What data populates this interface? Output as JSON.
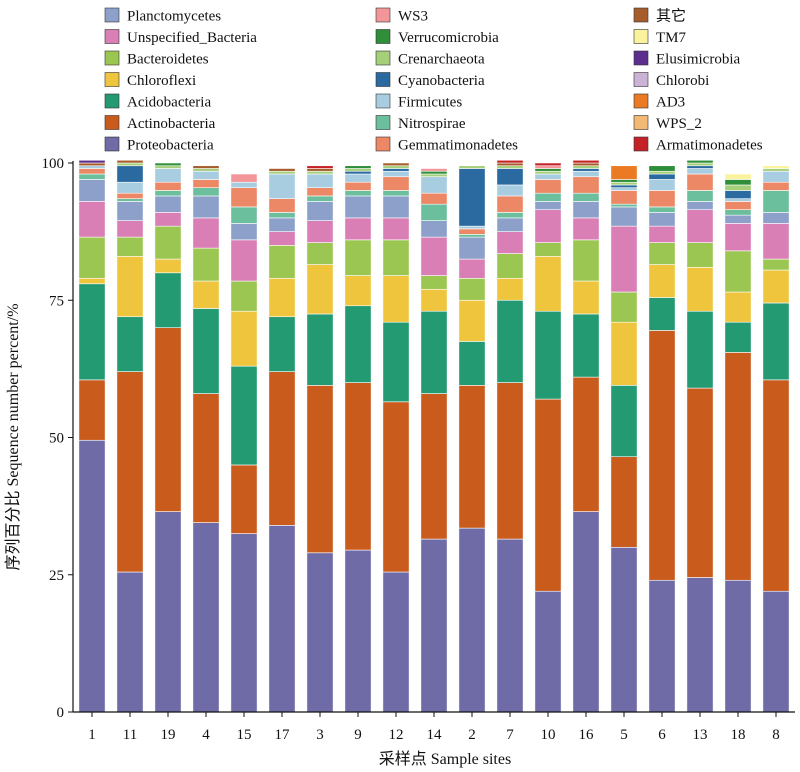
{
  "chart_data": {
    "type": "bar",
    "stacked": true,
    "xlabel": "采样点 Sample sites",
    "ylabel": "序列百分比 Sequence number percent/%",
    "ylim": [
      0,
      100
    ],
    "yticks": [
      0,
      25,
      50,
      75,
      100
    ],
    "legend_position": "top",
    "categories": [
      "1",
      "11",
      "19",
      "4",
      "15",
      "17",
      "3",
      "9",
      "12",
      "14",
      "2",
      "7",
      "10",
      "16",
      "5",
      "6",
      "13",
      "18",
      "8"
    ],
    "series": [
      {
        "name": "Proteobacteria",
        "color": "#6e6ba7",
        "values": [
          49.5,
          25.5,
          36.5,
          34.5,
          32.5,
          34,
          29,
          29.5,
          25.5,
          31.5,
          33.5,
          31.5,
          22,
          36.5,
          30,
          24,
          24.5,
          24,
          22
        ]
      },
      {
        "name": "Actinobacteria",
        "color": "#c95b1d",
        "values": [
          11,
          36.5,
          33.5,
          23.5,
          12.5,
          28,
          30.5,
          30.5,
          31,
          26.5,
          26,
          28.5,
          35,
          24.5,
          16.5,
          45.5,
          34.5,
          41.5,
          38.5
        ]
      },
      {
        "name": "Acidobacteria",
        "color": "#239a72",
        "values": [
          17.5,
          10,
          10,
          15.5,
          18,
          10,
          13,
          14,
          14.5,
          15,
          8,
          15,
          16,
          11.5,
          13,
          6,
          14,
          5.5,
          14
        ]
      },
      {
        "name": "Chloroflexi",
        "color": "#efc53e",
        "values": [
          1,
          11,
          2.5,
          5,
          10,
          7,
          9,
          5.5,
          8.5,
          4,
          7.5,
          4,
          10,
          6,
          11.5,
          6,
          8,
          5.5,
          6
        ]
      },
      {
        "name": "Bacteroidetes",
        "color": "#9bc651",
        "values": [
          7.5,
          3.5,
          6,
          6,
          5.5,
          6,
          4,
          6.5,
          6.5,
          2.5,
          4,
          4.5,
          2.5,
          7.5,
          5.5,
          4,
          4.5,
          7.5,
          2
        ]
      },
      {
        "name": "Unspecified_Bacteria",
        "color": "#d97fb6",
        "values": [
          6.5,
          3,
          2.5,
          5.5,
          7.5,
          2.5,
          4,
          4,
          4,
          7,
          3.5,
          4,
          6,
          4,
          12,
          3,
          6,
          5,
          6.5
        ]
      },
      {
        "name": "Planctomycetes",
        "color": "#8da0ca",
        "values": [
          4,
          3.5,
          3,
          4,
          3,
          2.5,
          3.5,
          4,
          4,
          3,
          4,
          2.5,
          1.5,
          3,
          3.5,
          2.5,
          1.5,
          1.5,
          2
        ]
      },
      {
        "name": "Nitrospirae",
        "color": "#6cbf9d",
        "values": [
          1,
          0.5,
          1,
          1.5,
          3,
          1,
          1,
          1,
          1,
          3,
          0.5,
          1,
          1.5,
          1.5,
          0.5,
          1,
          2,
          1,
          4
        ]
      },
      {
        "name": "Gemmatimonadetes",
        "color": "#ec8865",
        "values": [
          1,
          1,
          1.5,
          1.5,
          3.5,
          2.5,
          1.5,
          1.5,
          2.5,
          2,
          1,
          3,
          2.5,
          3,
          2.5,
          3,
          3,
          1.5,
          1.5
        ]
      },
      {
        "name": "Firmicutes",
        "color": "#a8cde0",
        "values": [
          0.5,
          2,
          2.5,
          1.5,
          1,
          4.5,
          2.5,
          1.5,
          1,
          3,
          0.5,
          2,
          1,
          1,
          0.5,
          2,
          1,
          0.5,
          2
        ]
      },
      {
        "name": "Cyanobacteria",
        "color": "#2a6aa0",
        "values": [
          0,
          3,
          0,
          0,
          0,
          0,
          0,
          0.5,
          0.5,
          0,
          10.5,
          3,
          0,
          0.5,
          0.5,
          1,
          0.5,
          1.5,
          0
        ]
      },
      {
        "name": "Crenarchaeota",
        "color": "#a6cf7a",
        "values": [
          0,
          0.5,
          0.5,
          0.5,
          0,
          0.5,
          0.5,
          0.5,
          0.5,
          0.5,
          0.5,
          0.5,
          0.5,
          0.5,
          0.5,
          0.5,
          0.5,
          1,
          0.5
        ]
      },
      {
        "name": "Verrucomicrobia",
        "color": "#2e8e3a",
        "values": [
          0,
          0,
          0.5,
          0,
          0,
          0,
          0,
          0.5,
          0,
          0.5,
          0,
          0,
          0.5,
          0,
          0.5,
          1,
          0.5,
          1,
          0
        ]
      },
      {
        "name": "WS3",
        "color": "#f3969a",
        "values": [
          0,
          0,
          0,
          0,
          1.5,
          0,
          0,
          0,
          0,
          0.5,
          0,
          0,
          0.5,
          0,
          0,
          0,
          0,
          0,
          0
        ]
      },
      {
        "name": "其它",
        "color": "#a75d2b",
        "values": [
          0.5,
          0.5,
          0,
          0.5,
          0,
          0.5,
          0.5,
          0,
          0.5,
          0,
          0,
          0.5,
          0,
          0.5,
          0,
          0,
          0,
          0,
          0
        ]
      },
      {
        "name": "TM7",
        "color": "#fbf29d",
        "values": [
          0,
          0,
          0,
          0,
          0,
          0,
          0,
          0,
          0,
          0,
          0,
          0,
          0,
          0,
          0,
          0,
          0,
          1,
          0.5
        ]
      },
      {
        "name": "Elusimicrobia",
        "color": "#5c2f8e",
        "values": [
          0.5,
          0,
          0,
          0,
          0,
          0,
          0,
          0,
          0,
          0,
          0,
          0,
          0,
          0,
          0,
          0,
          0,
          0,
          0
        ]
      },
      {
        "name": "Chlorobi",
        "color": "#cbb3d6",
        "values": [
          0,
          0,
          0,
          0,
          0,
          0,
          0,
          0,
          0,
          0,
          0,
          0,
          0,
          0,
          0,
          0,
          0,
          0,
          0
        ]
      },
      {
        "name": "AD3",
        "color": "#ea7a23",
        "values": [
          0,
          0,
          0,
          0,
          0,
          0,
          0,
          0,
          0,
          0,
          0,
          0,
          0,
          0,
          2.5,
          0,
          0,
          0,
          0
        ]
      },
      {
        "name": "WPS_2",
        "color": "#f2b974",
        "values": [
          0,
          0,
          0,
          0,
          0,
          0,
          0,
          0,
          0,
          0,
          0,
          0,
          0,
          0,
          0,
          0,
          0,
          0,
          0
        ]
      },
      {
        "name": "Armatimonadetes",
        "color": "#c42227",
        "values": [
          0,
          0,
          0,
          0,
          0,
          0,
          0.5,
          0,
          0,
          0,
          0,
          0.5,
          0.5,
          0.5,
          0,
          0,
          0,
          0,
          0
        ]
      }
    ],
    "legend": {
      "columns": [
        [
          "Planctomycetes",
          "Unspecified_Bacteria",
          "Bacteroidetes",
          "Chloroflexi",
          "Acidobacteria",
          "Actinobacteria",
          "Proteobacteria"
        ],
        [
          "WS3",
          "Verrucomicrobia",
          "Crenarchaeota",
          "Cyanobacteria",
          "Firmicutes",
          "Nitrospirae",
          "Gemmatimonadetes"
        ],
        [
          "其它",
          "TM7",
          "Elusimicrobia",
          "Chlorobi",
          "AD3",
          "WPS_2",
          "Armatimonadetes"
        ]
      ]
    }
  }
}
